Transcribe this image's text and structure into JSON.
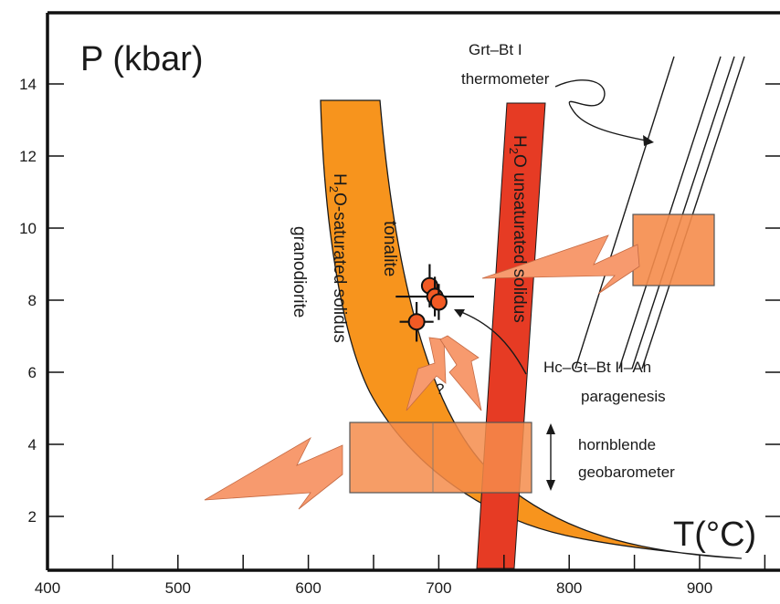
{
  "chart_data": {
    "type": "scatter",
    "title": "",
    "xlabel": "T(°C)",
    "ylabel": "P (kbar)",
    "xlim": [
      400,
      960
    ],
    "ylim": [
      0.7,
      15.7
    ],
    "x_ticks": [
      400,
      500,
      600,
      700,
      800,
      900
    ],
    "y_ticks": [
      2,
      4,
      6,
      8,
      10,
      12,
      14
    ],
    "points": [
      {
        "x": 683,
        "y": 7.4,
        "xerr": 13,
        "yerr": 0.55
      },
      {
        "x": 693,
        "y": 8.4,
        "xerr": 6,
        "yerr": 0.6
      },
      {
        "x": 697,
        "y": 8.1,
        "xerr": 30,
        "yerr": 0.55
      },
      {
        "x": 700,
        "y": 7.95,
        "xerr": 6,
        "yerr": 0.5
      }
    ],
    "boxes": [
      {
        "name": "Grt-Bt I thermometer box",
        "x_range": [
          850,
          910
        ],
        "y_range": [
          8.45,
          10.4
        ]
      },
      {
        "name": "hornblende geobarometer box",
        "x_range": [
          630,
          770
        ],
        "y_range": [
          2.7,
          4.65
        ]
      }
    ],
    "bands": [
      {
        "label": "H2O-saturated solidus",
        "note": "curved band from ~(610,14) bending to ~(815,0.9)"
      },
      {
        "label": "H2O unsaturated solidus",
        "note": "band from ~(750,13.5) to ~(740,0.8)"
      }
    ],
    "thermometer_lines": [
      {
        "from": [
          900,
          14.8
        ],
        "to": [
          826,
          5.2
        ]
      },
      {
        "from": [
          934,
          14.5
        ],
        "to": [
          862,
          5.2
        ]
      },
      {
        "from": [
          944,
          14.5
        ],
        "to": [
          872,
          5.2
        ]
      },
      {
        "from": [
          952,
          14.5
        ],
        "to": [
          880,
          5.2
        ]
      }
    ]
  },
  "labels": {
    "y_axis_title": "P",
    "y_axis_unit": "(kbar)",
    "x_axis_title": "T(°C)",
    "h2o_unsat_line1": "H",
    "h2o_unsat_sub": "2",
    "h2o_unsat_line2": "O unsaturated solidus",
    "h2o_sat_line1": "H",
    "h2o_sat_sub": "2",
    "h2o_sat_line2": "O-saturated solidus",
    "granodiorite": "granodiorite",
    "tonalite": "tonalite",
    "grt_bt_1": "Grt–Bt I",
    "grt_bt_2": "thermometer",
    "hc_gt_1": "Hc–Gt–Bt II–Ah",
    "hc_gt_2": "paragenesis",
    "hornblende_1": "hornblende",
    "hornblende_2": "geobarometer",
    "question": "?"
  },
  "colors": {
    "h2o_saturated_band": "#f7941d",
    "h2o_unsaturated_band": "#e63b24",
    "box_fill": "#f58c4b",
    "arrow_fill": "#f79a6e",
    "point_fill": "#f15a24"
  }
}
